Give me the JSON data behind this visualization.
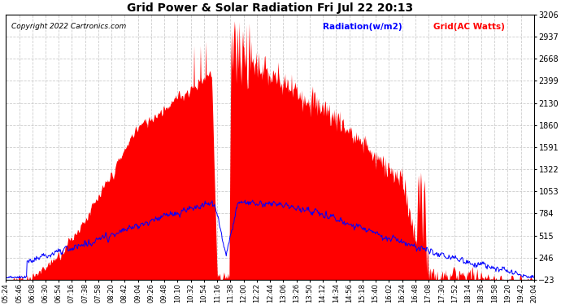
{
  "title": "Grid Power & Solar Radiation Fri Jul 22 20:13",
  "copyright": "Copyright 2022 Cartronics.com",
  "legend_radiation": "Radiation(w/m2)",
  "legend_grid": "Grid(AC Watts)",
  "background_color": "#ffffff",
  "plot_bg_color": "#ffffff",
  "grid_color": "#c0c0c0",
  "red_fill_color": "#ff0000",
  "blue_line_color": "#0000ff",
  "yticks": [
    -23.0,
    246.1,
    515.1,
    784.2,
    1053.3,
    1322.4,
    1591.4,
    1860.5,
    2129.6,
    2398.7,
    2667.7,
    2936.8,
    3205.9
  ],
  "ymin": -23.0,
  "ymax": 3205.9,
  "xtick_labels": [
    "05:24",
    "05:46",
    "06:08",
    "06:30",
    "06:54",
    "07:16",
    "07:38",
    "07:58",
    "08:20",
    "08:42",
    "09:04",
    "09:26",
    "09:48",
    "10:10",
    "10:32",
    "10:54",
    "11:16",
    "11:38",
    "12:00",
    "12:22",
    "12:44",
    "13:06",
    "13:26",
    "13:50",
    "14:12",
    "14:34",
    "14:56",
    "15:18",
    "15:40",
    "16:02",
    "16:24",
    "16:48",
    "17:08",
    "17:30",
    "17:52",
    "18:14",
    "18:36",
    "18:58",
    "19:20",
    "19:42",
    "20:04"
  ],
  "n_points": 900
}
